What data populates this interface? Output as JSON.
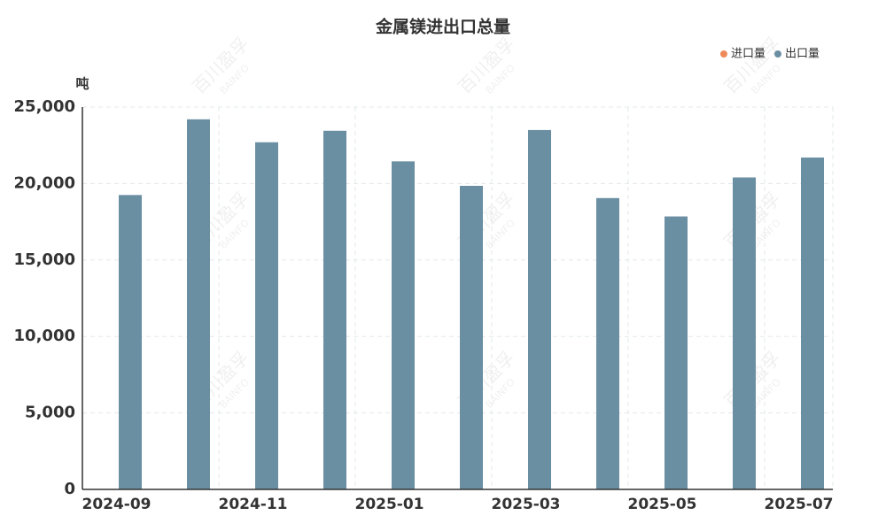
{
  "chart_data": {
    "type": "bar",
    "title": "金属镁进出口总量",
    "y_label": "吨",
    "watermark": "百川盈孚",
    "watermark_sub": "BAINFO",
    "categories": [
      "2024-09",
      null,
      "2024-11",
      null,
      "2025-01",
      null,
      "2025-03",
      null,
      "2025-05",
      null,
      "2025-07"
    ],
    "series": [
      {
        "name": "进口量",
        "color": "#ee8a5a",
        "values": [
          null,
          null,
          null,
          null,
          null,
          null,
          null,
          null,
          null,
          null,
          null
        ]
      },
      {
        "name": "出口量",
        "color": "#6a8fa3",
        "values": [
          19250,
          24200,
          22700,
          23450,
          21450,
          19850,
          23500,
          19050,
          17850,
          20400,
          21700
        ]
      }
    ],
    "ylim": [
      0,
      25000
    ],
    "yticks": [
      0,
      {
        "value": 5000,
        "label": "5,000"
      },
      {
        "value": 10000,
        "label": "10,000"
      },
      {
        "value": 15000,
        "label": "15,000"
      },
      {
        "value": 20000,
        "label": "20,000"
      },
      {
        "value": 25000,
        "label": "25,000"
      }
    ],
    "grid": true,
    "legend": "top-right"
  }
}
